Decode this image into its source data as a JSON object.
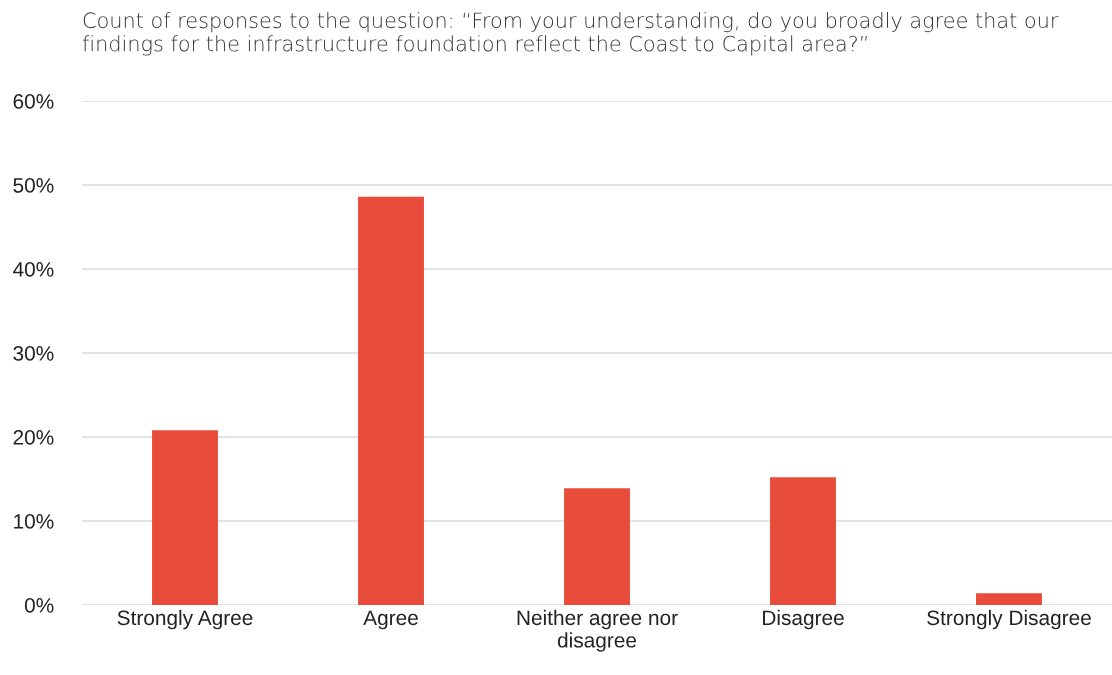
{
  "chart_data": {
    "type": "bar",
    "title": "Count of responses to the question: “From your understanding, do you broadly agree that our findings for the infrastructure foundation reflect the Coast to Capital area?”",
    "categories": [
      "Strongly Agree",
      "Agree",
      "Neither agree nor disagree",
      "Disagree",
      "Strongly Disagree"
    ],
    "values": [
      20.8,
      48.6,
      13.9,
      15.2,
      1.4
    ],
    "color": "#e84c3b",
    "ylim": [
      0,
      60
    ],
    "yticks": [
      {
        "value": 0,
        "label": "0%"
      },
      {
        "value": 10,
        "label": "10%"
      },
      {
        "value": 20,
        "label": "20%"
      },
      {
        "value": 30,
        "label": "30%"
      },
      {
        "value": 40,
        "label": "40%"
      },
      {
        "value": 50,
        "label": "50%"
      },
      {
        "value": 60,
        "label": "60%"
      }
    ],
    "grid": "y"
  }
}
